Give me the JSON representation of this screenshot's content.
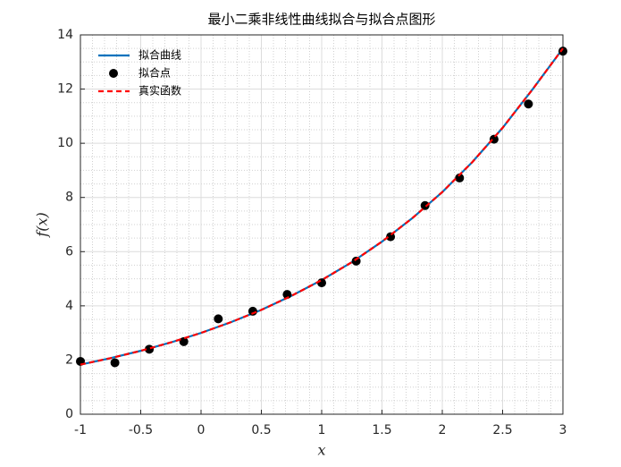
{
  "chart_data": {
    "type": "line",
    "title": "最小二乘非线性曲线拟合与拟合点图形",
    "xlabel": "x",
    "ylabel": "f(x)",
    "xlim": [
      -1,
      3
    ],
    "ylim": [
      0,
      14
    ],
    "xticks": [
      -1,
      -0.5,
      0,
      0.5,
      1,
      1.5,
      2,
      2.5,
      3
    ],
    "yticks": [
      0,
      2,
      4,
      6,
      8,
      10,
      12,
      14
    ],
    "grid": true,
    "minor_grid": true,
    "legend": "northwest",
    "series": [
      {
        "name": "拟合曲线",
        "type": "line",
        "style": "solid",
        "color": "#0072bd",
        "x": [
          -1,
          -0.75,
          -0.5,
          -0.25,
          0,
          0.25,
          0.5,
          0.75,
          1,
          1.25,
          1.5,
          1.75,
          2,
          2.25,
          2.5,
          2.75,
          3
        ],
        "values": [
          1.83,
          2.07,
          2.34,
          2.65,
          3.0,
          3.4,
          3.85,
          4.37,
          4.95,
          5.61,
          6.37,
          7.23,
          8.2,
          9.31,
          10.57,
          12.0,
          13.5
        ]
      },
      {
        "name": "拟合点",
        "type": "scatter",
        "color": "#000000",
        "x": [
          -1,
          -0.714,
          -0.429,
          -0.143,
          0.143,
          0.429,
          0.714,
          1,
          1.286,
          1.571,
          1.857,
          2.143,
          2.429,
          2.714,
          3
        ],
        "values": [
          1.95,
          1.9,
          2.4,
          2.68,
          3.52,
          3.8,
          4.42,
          4.85,
          5.65,
          6.55,
          7.7,
          8.72,
          10.15,
          11.45,
          13.4
        ]
      },
      {
        "name": "真实函数",
        "type": "line",
        "style": "dashed",
        "color": "#ff0000",
        "x": [
          -1,
          -0.75,
          -0.5,
          -0.25,
          0,
          0.25,
          0.5,
          0.75,
          1,
          1.25,
          1.5,
          1.75,
          2,
          2.25,
          2.5,
          2.75,
          3
        ],
        "values": [
          1.83,
          2.07,
          2.34,
          2.65,
          3.0,
          3.4,
          3.85,
          4.37,
          4.95,
          5.61,
          6.37,
          7.23,
          8.2,
          9.31,
          10.57,
          12.0,
          13.5
        ]
      }
    ]
  }
}
